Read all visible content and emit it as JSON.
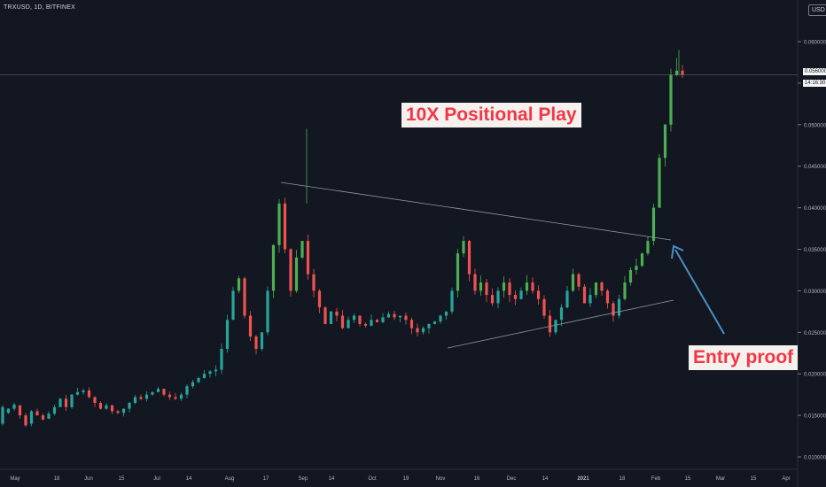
{
  "header": {
    "symbol": "TRXUSD, 1D, BITFINEX",
    "currency": "USD"
  },
  "annotations": {
    "title": "10X Positional Play",
    "entry": "Entry proof"
  },
  "price_labels": {
    "last": "0.056000",
    "countdown": "14:16:30"
  },
  "colors": {
    "background": "#131722",
    "up": "#26a69a",
    "up_bright": "#4caf50",
    "down": "#ef5350",
    "grid": "#1e222d",
    "axis_text": "#b2b5be",
    "annotation": "#f23645",
    "arrow": "#4a90c2",
    "trendline": "#9598a1"
  },
  "chart_data": {
    "type": "candlestick",
    "x_tick_labels": [
      "May",
      "18",
      "Jun",
      "15",
      "Jul",
      "14",
      "Aug",
      "17",
      "Sep",
      "14",
      "Oct",
      "19",
      "Nov",
      "16",
      "Dec",
      "14",
      "2021",
      "18",
      "Feb",
      "15",
      "Mar",
      "15",
      "Apr"
    ],
    "y_tick_labels": [
      "0.060000",
      "0.055000",
      "0.050000",
      "0.045000",
      "0.040000",
      "0.035000",
      "0.030000",
      "0.025000",
      "0.020000",
      "0.015000",
      "0.010000"
    ],
    "y_ticks": [
      0.06,
      0.055,
      0.05,
      0.045,
      0.04,
      0.035,
      0.03,
      0.025,
      0.02,
      0.015,
      0.01
    ],
    "ylim": [
      0.0085,
      0.0625
    ],
    "last_price": 0.056,
    "price_path": [
      [
        0.014,
        0.016
      ],
      [
        0.0153,
        0.0158
      ],
      [
        0.0158,
        0.0163
      ],
      [
        0.0162,
        0.015
      ],
      [
        0.015,
        0.0138
      ],
      [
        0.014,
        0.0155
      ],
      [
        0.0155,
        0.015
      ],
      [
        0.015,
        0.0145
      ],
      [
        0.0146,
        0.0152
      ],
      [
        0.0152,
        0.016
      ],
      [
        0.016,
        0.017
      ],
      [
        0.017,
        0.016
      ],
      [
        0.016,
        0.0175
      ],
      [
        0.0175,
        0.0178
      ],
      [
        0.0178,
        0.018
      ],
      [
        0.018,
        0.0172
      ],
      [
        0.0172,
        0.0165
      ],
      [
        0.0165,
        0.0158
      ],
      [
        0.0158,
        0.0162
      ],
      [
        0.0162,
        0.0155
      ],
      [
        0.0155,
        0.0153
      ],
      [
        0.0153,
        0.0158
      ],
      [
        0.0158,
        0.0165
      ],
      [
        0.0165,
        0.0172
      ],
      [
        0.0172,
        0.017
      ],
      [
        0.017,
        0.0175
      ],
      [
        0.0175,
        0.0178
      ],
      [
        0.0178,
        0.0182
      ],
      [
        0.0182,
        0.0175
      ],
      [
        0.0175,
        0.0172
      ],
      [
        0.0172,
        0.017
      ],
      [
        0.017,
        0.0175
      ],
      [
        0.0175,
        0.0185
      ],
      [
        0.0185,
        0.019
      ],
      [
        0.019,
        0.0195
      ],
      [
        0.0195,
        0.02
      ],
      [
        0.02,
        0.0203
      ],
      [
        0.0203,
        0.0205
      ],
      [
        0.0205,
        0.023
      ],
      [
        0.023,
        0.0265
      ],
      [
        0.0265,
        0.03
      ],
      [
        0.03,
        0.0315
      ],
      [
        0.0315,
        0.027
      ],
      [
        0.027,
        0.0245
      ],
      [
        0.0245,
        0.023
      ],
      [
        0.023,
        0.025
      ],
      [
        0.025,
        0.03
      ],
      [
        0.03,
        0.0355
      ],
      [
        0.0355,
        0.0405
      ],
      [
        0.0405,
        0.035
      ],
      [
        0.035,
        0.03
      ],
      [
        0.03,
        0.034
      ],
      [
        0.034,
        0.036
      ],
      [
        0.036,
        0.032
      ],
      [
        0.032,
        0.03
      ],
      [
        0.03,
        0.028
      ],
      [
        0.028,
        0.026
      ],
      [
        0.026,
        0.0275
      ],
      [
        0.0275,
        0.027
      ],
      [
        0.027,
        0.0255
      ],
      [
        0.0255,
        0.0265
      ],
      [
        0.0265,
        0.027
      ],
      [
        0.027,
        0.026
      ],
      [
        0.026,
        0.0258
      ],
      [
        0.0258,
        0.0265
      ],
      [
        0.0265,
        0.0262
      ],
      [
        0.0262,
        0.0268
      ],
      [
        0.0268,
        0.0272
      ],
      [
        0.0272,
        0.0268
      ],
      [
        0.0268,
        0.027
      ],
      [
        0.027,
        0.0265
      ],
      [
        0.0265,
        0.0255
      ],
      [
        0.0255,
        0.025
      ],
      [
        0.025,
        0.0255
      ],
      [
        0.0255,
        0.026
      ],
      [
        0.026,
        0.0263
      ],
      [
        0.0263,
        0.027
      ],
      [
        0.027,
        0.0275
      ],
      [
        0.0275,
        0.03
      ],
      [
        0.03,
        0.0345
      ],
      [
        0.0345,
        0.036
      ],
      [
        0.036,
        0.032
      ],
      [
        0.032,
        0.03
      ],
      [
        0.03,
        0.031
      ],
      [
        0.031,
        0.0295
      ],
      [
        0.0295,
        0.0285
      ],
      [
        0.0285,
        0.03
      ],
      [
        0.03,
        0.031
      ],
      [
        0.031,
        0.0295
      ],
      [
        0.0295,
        0.029
      ],
      [
        0.029,
        0.03
      ],
      [
        0.03,
        0.031
      ],
      [
        0.031,
        0.03
      ],
      [
        0.03,
        0.029
      ],
      [
        0.029,
        0.027
      ],
      [
        0.027,
        0.025
      ],
      [
        0.025,
        0.0265
      ],
      [
        0.0265,
        0.028
      ],
      [
        0.028,
        0.03
      ],
      [
        0.03,
        0.032
      ],
      [
        0.032,
        0.0305
      ],
      [
        0.0305,
        0.0285
      ],
      [
        0.0285,
        0.0295
      ],
      [
        0.0295,
        0.031
      ],
      [
        0.031,
        0.03
      ],
      [
        0.03,
        0.0285
      ],
      [
        0.0285,
        0.027
      ],
      [
        0.027,
        0.029
      ],
      [
        0.029,
        0.031
      ],
      [
        0.031,
        0.0325
      ],
      [
        0.0325,
        0.033
      ],
      [
        0.033,
        0.0345
      ],
      [
        0.0345,
        0.036
      ],
      [
        0.036,
        0.04
      ],
      [
        0.04,
        0.046
      ],
      [
        0.046,
        0.05
      ],
      [
        0.05,
        0.056
      ],
      [
        0.056,
        0.0565
      ],
      [
        0.0565,
        0.056
      ]
    ]
  }
}
